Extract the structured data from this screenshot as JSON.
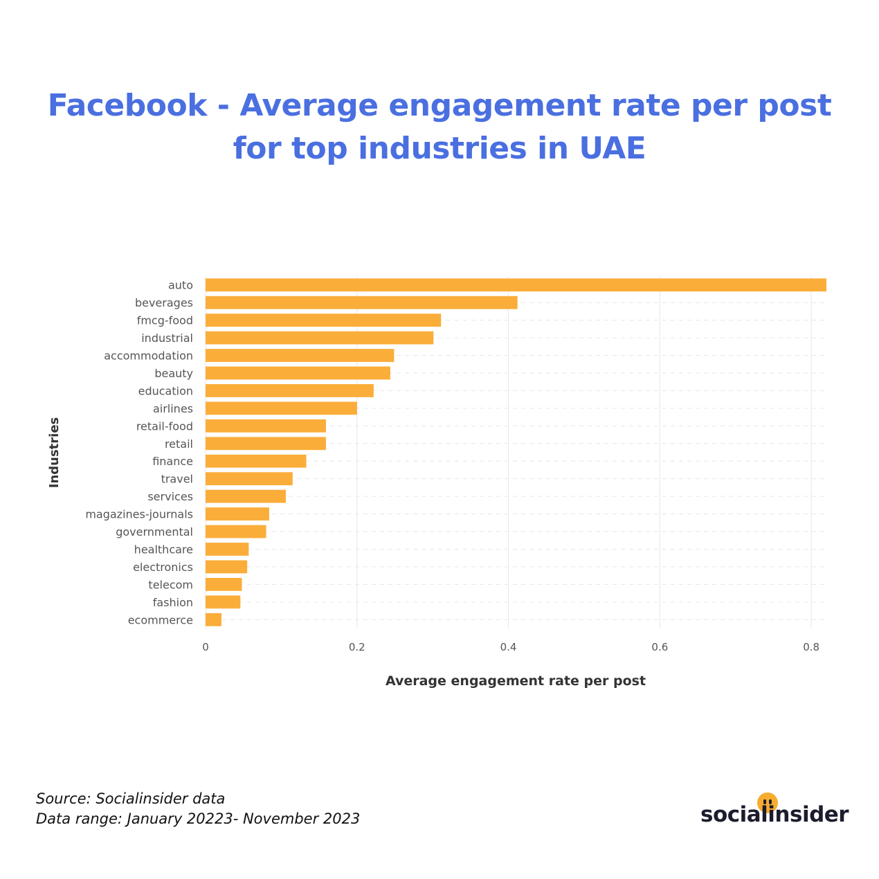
{
  "title_lines": [
    "Facebook - Average engagement rate per post",
    "for top industries in UAE"
  ],
  "footer": {
    "source": "Source: Socialinsider data",
    "range": "Data range: January 20223- November 2023"
  },
  "logo": {
    "text": "socialinsider"
  },
  "colors": {
    "title": "#4a6fe0",
    "bar": "#fbad3a",
    "grid": "#e6e6e6",
    "logo_dot": "#f7ac2f"
  },
  "chart_data": {
    "type": "bar",
    "orientation": "horizontal",
    "xlabel": "Average engagement rate per post",
    "ylabel": "Industries",
    "xlim": [
      0,
      0.82
    ],
    "xticks": [
      0,
      0.2,
      0.4,
      0.6,
      0.8
    ],
    "grid": true,
    "categories": [
      "auto",
      "beverages",
      "fmcg-food",
      "industrial",
      "accommodation",
      "beauty",
      "education",
      "airlines",
      "retail-food",
      "retail",
      "finance",
      "travel",
      "services",
      "magazines-journals",
      "governmental",
      "healthcare",
      "electronics",
      "telecom",
      "fashion",
      "ecommerce"
    ],
    "values": [
      0.82,
      0.412,
      0.311,
      0.301,
      0.249,
      0.244,
      0.222,
      0.2,
      0.159,
      0.159,
      0.133,
      0.115,
      0.106,
      0.084,
      0.08,
      0.057,
      0.055,
      0.048,
      0.046,
      0.021
    ]
  }
}
